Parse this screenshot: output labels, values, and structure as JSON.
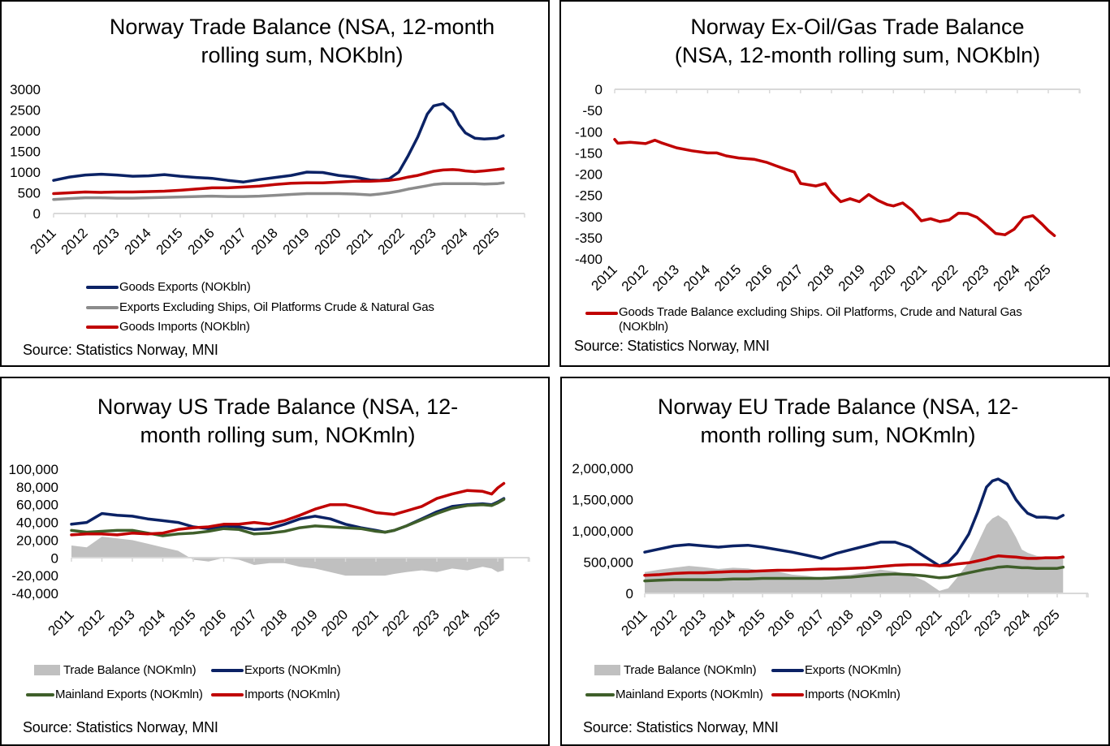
{
  "colors": {
    "navy": "#0b2265",
    "red": "#c00000",
    "grey_line": "#8c8c8c",
    "green": "#3f5f2a",
    "area_grey": "#c0c0c0",
    "axis": "#d9d9d9"
  },
  "chart_data": [
    {
      "id": "norway-trade-balance",
      "type": "line",
      "title": "Norway Trade Balance (NSA, 12-month rolling sum, NOKbln)",
      "title_lines": [
        "Norway Trade Balance (NSA, 12-month",
        "rolling sum, NOKbln)"
      ],
      "xlabel": "",
      "ylabel": "",
      "ylim": [
        0,
        3000
      ],
      "yticks": [
        0,
        500,
        1000,
        1500,
        2000,
        2500,
        3000
      ],
      "ytick_labels": [
        "0",
        "500",
        "1000",
        "1500",
        "2000",
        "2500",
        "3000"
      ],
      "xlim": [
        2011,
        2025.9
      ],
      "xticks": [
        2011,
        2012,
        2013,
        2014,
        2015,
        2016,
        2017,
        2018,
        2019,
        2020,
        2021,
        2022,
        2023,
        2024,
        2025
      ],
      "xtick_labels": [
        "2011",
        "2012",
        "2013",
        "2014",
        "2015",
        "2016",
        "2017",
        "2018",
        "2019",
        "2020",
        "2021",
        "2022",
        "2023",
        "2024",
        "2025"
      ],
      "legend_position": "bottom",
      "source": "Source: Statistics Norway, MNI",
      "x": [
        2011.0,
        2011.5,
        2012.0,
        2012.5,
        2013.0,
        2013.5,
        2014.0,
        2014.5,
        2015.0,
        2015.5,
        2016.0,
        2016.5,
        2017.0,
        2017.5,
        2018.0,
        2018.5,
        2019.0,
        2019.5,
        2020.0,
        2020.5,
        2021.0,
        2021.3,
        2021.6,
        2021.9,
        2022.2,
        2022.5,
        2022.8,
        2023.0,
        2023.3,
        2023.6,
        2023.8,
        2024.0,
        2024.3,
        2024.6,
        2025.0,
        2025.2
      ],
      "series": [
        {
          "name": "Goods Exports (NOKbln)",
          "color": "#0b2265",
          "kind": "line",
          "values": [
            800,
            880,
            930,
            950,
            930,
            900,
            910,
            940,
            900,
            870,
            850,
            800,
            760,
            820,
            870,
            920,
            1000,
            990,
            920,
            880,
            810,
            800,
            840,
            1000,
            1400,
            1850,
            2400,
            2600,
            2650,
            2450,
            2150,
            1950,
            1820,
            1800,
            1820,
            1880
          ]
        },
        {
          "name": "Exports Excluding Ships, Oil Platforms Crude & Natural Gas",
          "color": "#8c8c8c",
          "kind": "line",
          "values": [
            340,
            360,
            380,
            380,
            370,
            370,
            380,
            390,
            400,
            410,
            420,
            410,
            410,
            420,
            440,
            460,
            480,
            480,
            480,
            470,
            450,
            470,
            500,
            540,
            590,
            630,
            670,
            700,
            720,
            720,
            720,
            720,
            720,
            710,
            720,
            740
          ]
        },
        {
          "name": "Goods Imports (NOKbln)",
          "color": "#c00000",
          "kind": "line",
          "values": [
            480,
            500,
            520,
            510,
            520,
            520,
            530,
            540,
            560,
            590,
            620,
            620,
            640,
            660,
            700,
            730,
            740,
            740,
            760,
            780,
            780,
            790,
            800,
            830,
            880,
            920,
            980,
            1020,
            1050,
            1060,
            1050,
            1030,
            1010,
            1030,
            1060,
            1080
          ]
        }
      ]
    },
    {
      "id": "norway-ex-oil-gas-trade-balance",
      "type": "line",
      "title": "Norway Ex-Oil/Gas Trade Balance (NSA, 12-month rolling sum, NOKbln)",
      "title_lines": [
        "Norway Ex-Oil/Gas Trade Balance",
        "(NSA, 12-month rolling sum, NOKbln)"
      ],
      "xlabel": "",
      "ylabel": "",
      "ylim": [
        -400,
        0
      ],
      "yticks": [
        0,
        -50,
        -100,
        -150,
        -200,
        -250,
        -300,
        -350,
        -400
      ],
      "ytick_labels": [
        "0",
        "-50",
        "-100",
        "-150",
        "-200",
        "-250",
        "-300",
        "-350",
        "-400"
      ],
      "xlim": [
        2011,
        2025.9
      ],
      "xticks": [
        2011,
        2012,
        2013,
        2014,
        2015,
        2016,
        2017,
        2018,
        2019,
        2020,
        2021,
        2022,
        2023,
        2024,
        2025
      ],
      "xtick_labels": [
        "2011",
        "2012",
        "2013",
        "2014",
        "2015",
        "2016",
        "2017",
        "2018",
        "2019",
        "2020",
        "2021",
        "2022",
        "2023",
        "2024",
        "2025"
      ],
      "legend_position": "bottom",
      "source": "Source: Statistics Norway, MNI",
      "x": [
        2011.0,
        2011.1,
        2011.5,
        2012.0,
        2012.3,
        2012.5,
        2013.0,
        2013.5,
        2014.0,
        2014.3,
        2014.6,
        2015.0,
        2015.5,
        2015.9,
        2016.2,
        2016.5,
        2016.8,
        2017.0,
        2017.5,
        2017.8,
        2018.0,
        2018.3,
        2018.6,
        2018.9,
        2019.2,
        2019.5,
        2019.8,
        2020.0,
        2020.3,
        2020.6,
        2020.9,
        2021.2,
        2021.5,
        2021.8,
        2022.1,
        2022.4,
        2022.7,
        2023.0,
        2023.3,
        2023.6,
        2023.9,
        2024.2,
        2024.5,
        2024.8,
        2025.0,
        2025.2
      ],
      "series": [
        {
          "name": "Goods Trade Balance excluding Ships. Oil Platforms, Crude and Natural Gas (NOKbln)",
          "color": "#c00000",
          "kind": "line",
          "values": [
            -118,
            -127,
            -125,
            -128,
            -120,
            -126,
            -138,
            -145,
            -150,
            -150,
            -157,
            -162,
            -165,
            -172,
            -180,
            -188,
            -195,
            -222,
            -228,
            -222,
            -243,
            -265,
            -258,
            -265,
            -248,
            -262,
            -272,
            -275,
            -268,
            -285,
            -310,
            -305,
            -312,
            -308,
            -292,
            -293,
            -302,
            -320,
            -340,
            -343,
            -330,
            -303,
            -298,
            -318,
            -333,
            -345
          ]
        }
      ]
    },
    {
      "id": "norway-us-trade-balance",
      "type": "line",
      "title": "Norway US Trade Balance (NSA, 12-month rolling sum, NOKmln)",
      "title_lines": [
        "Norway US Trade Balance (NSA, 12-",
        "month rolling sum, NOKmln)"
      ],
      "xlabel": "",
      "ylabel": "",
      "ylim": [
        -40000,
        100000
      ],
      "yticks": [
        100000,
        80000,
        60000,
        40000,
        20000,
        0,
        -20000,
        -40000
      ],
      "ytick_labels": [
        "100,000",
        "80,000",
        "60,000",
        "40,000",
        "20,000",
        "0",
        "-20,000",
        "-40,000"
      ],
      "xlim": [
        2011,
        2025.9
      ],
      "xticks": [
        2011,
        2012,
        2013,
        2014,
        2015,
        2016,
        2017,
        2018,
        2019,
        2020,
        2021,
        2022,
        2023,
        2024,
        2025
      ],
      "xtick_labels": [
        "2011",
        "2012",
        "2013",
        "2014",
        "2015",
        "2016",
        "2017",
        "2018",
        "2019",
        "2020",
        "2021",
        "2022",
        "2023",
        "2024",
        "2025"
      ],
      "legend_position": "bottom",
      "source": "Source: Statistics Norway, MNI",
      "x": [
        2011.0,
        2011.5,
        2012.0,
        2012.5,
        2013.0,
        2013.5,
        2014.0,
        2014.5,
        2015.0,
        2015.5,
        2016.0,
        2016.5,
        2017.0,
        2017.5,
        2018.0,
        2018.5,
        2019.0,
        2019.5,
        2020.0,
        2020.5,
        2021.0,
        2021.3,
        2021.6,
        2022.0,
        2022.5,
        2023.0,
        2023.5,
        2024.0,
        2024.5,
        2024.8,
        2025.0,
        2025.2
      ],
      "series": [
        {
          "name": "Trade Balance (NOKmln)",
          "color": "#c0c0c0",
          "kind": "area",
          "values": [
            14000,
            12000,
            24000,
            22000,
            20000,
            16000,
            12000,
            8000,
            -2000,
            -4000,
            0,
            -2000,
            -8000,
            -6000,
            -6000,
            -10000,
            -12000,
            -16000,
            -20000,
            -20000,
            -20000,
            -20000,
            -18000,
            -16000,
            -14000,
            -16000,
            -12000,
            -14000,
            -10000,
            -12000,
            -16000,
            -14000
          ]
        },
        {
          "name": "Exports (NOKmln)",
          "color": "#0b2265",
          "kind": "line",
          "values": [
            38000,
            40000,
            50000,
            48000,
            47000,
            44000,
            42000,
            40000,
            35000,
            33000,
            36000,
            35000,
            32000,
            33000,
            38000,
            44000,
            47000,
            44000,
            38000,
            34000,
            31000,
            29000,
            31000,
            36000,
            44000,
            52000,
            58000,
            60000,
            61000,
            60000,
            63000,
            67000
          ]
        },
        {
          "name": "Mainland Exports (NOKmln)",
          "color": "#3f5f2a",
          "kind": "line",
          "values": [
            31000,
            29000,
            30000,
            31000,
            31000,
            28000,
            25000,
            27000,
            28000,
            30000,
            33000,
            32000,
            27000,
            28000,
            30000,
            34000,
            36000,
            35000,
            34000,
            33000,
            30000,
            29000,
            31000,
            36000,
            43000,
            50000,
            56000,
            59000,
            60000,
            59000,
            62000,
            66000
          ]
        },
        {
          "name": "Imports (NOKmln)",
          "color": "#c00000",
          "kind": "line",
          "values": [
            26000,
            27000,
            27000,
            26000,
            28000,
            27000,
            28000,
            32000,
            34000,
            35000,
            38000,
            38000,
            40000,
            38000,
            42000,
            48000,
            55000,
            60000,
            60000,
            56000,
            51000,
            50000,
            49000,
            53000,
            58000,
            67000,
            72000,
            76000,
            75000,
            72000,
            79000,
            84000
          ]
        }
      ]
    },
    {
      "id": "norway-eu-trade-balance",
      "type": "line",
      "title": "Norway EU Trade Balance (NSA, 12-month rolling sum, NOKmln)",
      "title_lines": [
        "Norway EU Trade Balance (NSA, 12-",
        "month rolling sum, NOKmln)"
      ],
      "xlabel": "",
      "ylabel": "",
      "ylim": [
        0,
        2000000
      ],
      "yticks": [
        0,
        500000,
        1000000,
        1500000,
        2000000
      ],
      "ytick_labels": [
        "0",
        "500,000",
        "1,000,000",
        "1,500,000",
        "2,000,000"
      ],
      "xlim": [
        2011,
        2025.9
      ],
      "xticks": [
        2011,
        2012,
        2013,
        2014,
        2015,
        2016,
        2017,
        2018,
        2019,
        2020,
        2021,
        2022,
        2023,
        2024,
        2025
      ],
      "xtick_labels": [
        "2011",
        "2012",
        "2013",
        "2014",
        "2015",
        "2016",
        "2017",
        "2018",
        "2019",
        "2020",
        "2021",
        "2022",
        "2023",
        "2024",
        "2025"
      ],
      "legend_position": "bottom",
      "source": "Source: Statistics Norway, MNI",
      "x": [
        2011.0,
        2011.5,
        2012.0,
        2012.5,
        2013.0,
        2013.5,
        2014.0,
        2014.5,
        2015.0,
        2015.5,
        2016.0,
        2016.5,
        2017.0,
        2017.5,
        2018.0,
        2018.5,
        2019.0,
        2019.5,
        2020.0,
        2020.5,
        2021.0,
        2021.3,
        2021.6,
        2022.0,
        2022.3,
        2022.6,
        2022.8,
        2023.0,
        2023.3,
        2023.6,
        2023.8,
        2024.0,
        2024.3,
        2024.6,
        2025.0,
        2025.2
      ],
      "series": [
        {
          "name": "Trade Balance (NOKmln)",
          "color": "#c0c0c0",
          "kind": "area",
          "values": [
            340000,
            380000,
            410000,
            440000,
            420000,
            390000,
            410000,
            400000,
            360000,
            350000,
            300000,
            280000,
            250000,
            280000,
            300000,
            340000,
            380000,
            350000,
            300000,
            200000,
            40000,
            80000,
            250000,
            500000,
            800000,
            1100000,
            1200000,
            1250000,
            1150000,
            900000,
            700000,
            650000,
            600000,
            580000,
            560000,
            620000
          ]
        },
        {
          "name": "Exports (NOKmln)",
          "color": "#0b2265",
          "kind": "line",
          "values": [
            660000,
            710000,
            760000,
            780000,
            760000,
            740000,
            760000,
            770000,
            740000,
            700000,
            660000,
            610000,
            560000,
            640000,
            700000,
            760000,
            820000,
            820000,
            740000,
            590000,
            440000,
            500000,
            650000,
            950000,
            1300000,
            1700000,
            1800000,
            1830000,
            1750000,
            1500000,
            1380000,
            1280000,
            1220000,
            1220000,
            1200000,
            1250000
          ]
        },
        {
          "name": "Mainland Exports (NOKmln)",
          "color": "#3f5f2a",
          "kind": "line",
          "values": [
            200000,
            210000,
            220000,
            220000,
            220000,
            220000,
            230000,
            230000,
            240000,
            240000,
            240000,
            240000,
            240000,
            250000,
            260000,
            280000,
            300000,
            310000,
            300000,
            280000,
            250000,
            260000,
            290000,
            330000,
            360000,
            390000,
            400000,
            420000,
            430000,
            420000,
            410000,
            410000,
            400000,
            400000,
            400000,
            420000
          ]
        },
        {
          "name": "Imports (NOKmln)",
          "color": "#c00000",
          "kind": "line",
          "values": [
            290000,
            300000,
            320000,
            330000,
            330000,
            340000,
            350000,
            350000,
            360000,
            370000,
            370000,
            380000,
            390000,
            390000,
            400000,
            410000,
            430000,
            450000,
            460000,
            460000,
            440000,
            450000,
            470000,
            490000,
            520000,
            550000,
            580000,
            600000,
            590000,
            580000,
            570000,
            560000,
            560000,
            570000,
            570000,
            580000
          ]
        }
      ]
    }
  ]
}
